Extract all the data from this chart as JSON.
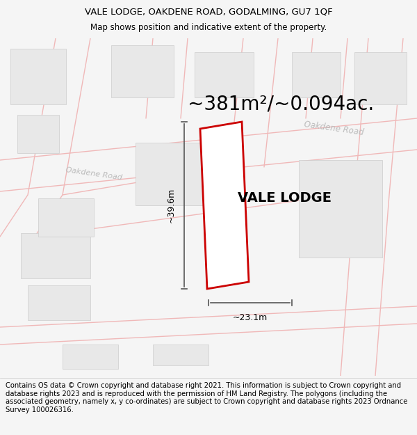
{
  "title_line1": "VALE LODGE, OAKDENE ROAD, GODALMING, GU7 1QF",
  "title_line2": "Map shows position and indicative extent of the property.",
  "area_text": "~381m²/~0.094ac.",
  "property_label": "VALE LODGE",
  "dim_horizontal": "~23.1m",
  "dim_vertical": "~39.6m",
  "road_label_diagonal": "Oakdene Road",
  "road_label_left": "Oakdene Road",
  "footer_text": "Contains OS data © Crown copyright and database right 2021. This information is subject to Crown copyright and database rights 2023 and is reproduced with the permission of HM Land Registry. The polygons (including the associated geometry, namely x, y co-ordinates) are subject to Crown copyright and database rights 2023 Ordnance Survey 100026316.",
  "bg_color": "#f5f5f5",
  "map_bg": "#ffffff",
  "building_fill": "#e8e8e8",
  "building_edge": "#cccccc",
  "road_line_color": "#f0b8b8",
  "property_fill": "#ffffff",
  "highlight_edge": "#cc0000",
  "title_fontsize": 9.5,
  "subtitle_fontsize": 8.5,
  "area_fontsize": 20,
  "label_fontsize": 14,
  "footer_fontsize": 7.2,
  "road_label_color": "#bbbbbb",
  "dim_line_color": "#555555"
}
